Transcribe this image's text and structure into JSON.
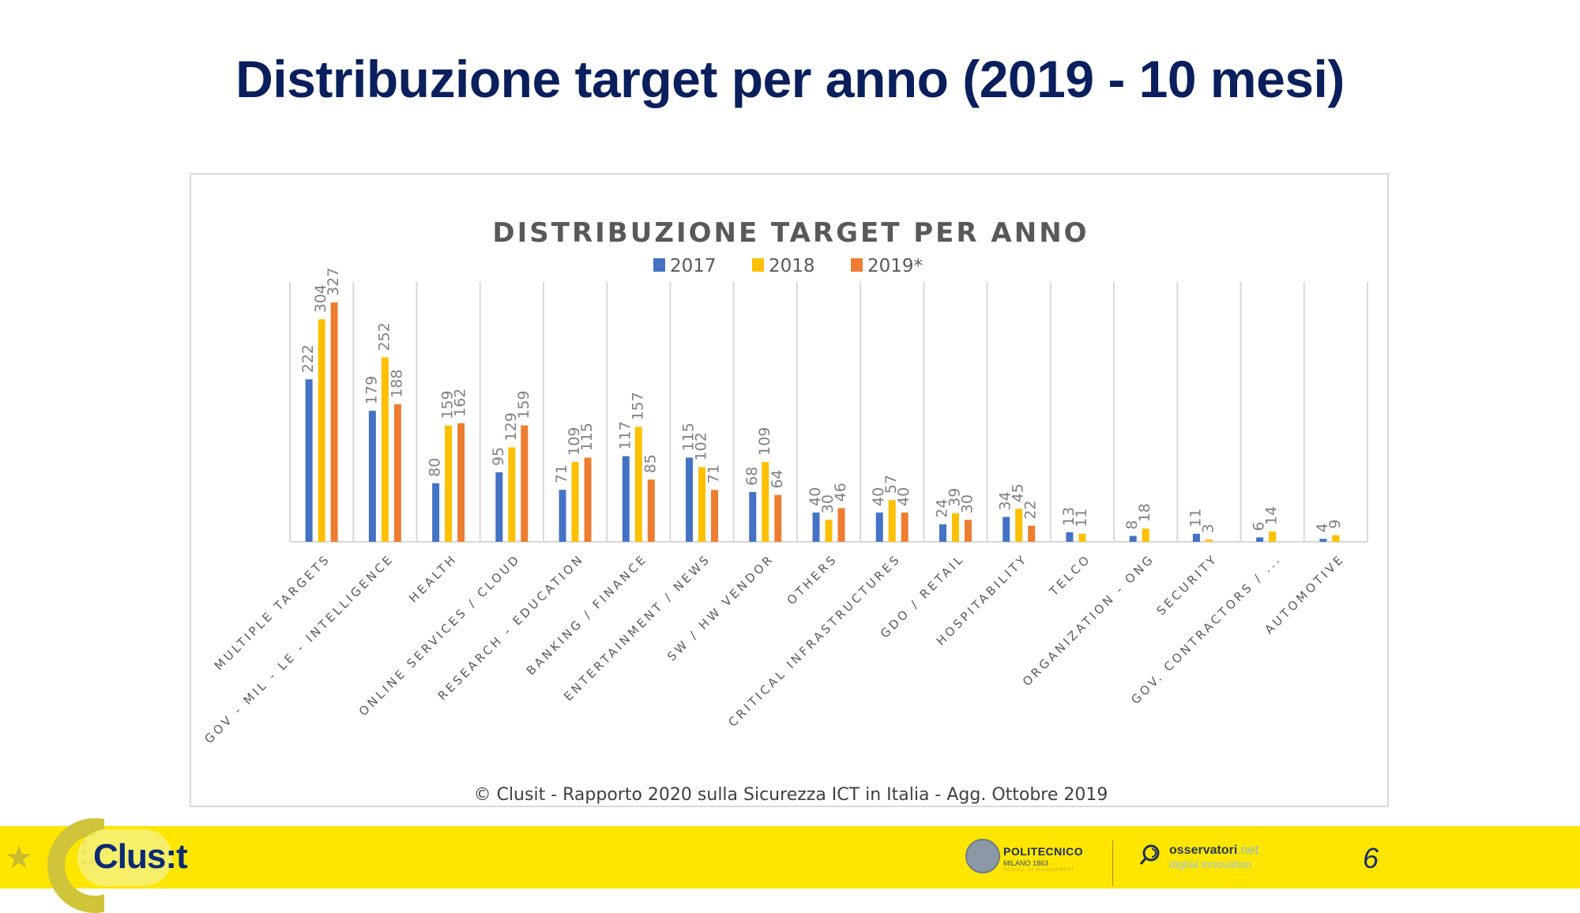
{
  "slide": {
    "title": "Distribuzione target per anno (2019 - 10 mesi)",
    "page_number": "6"
  },
  "footer": {
    "clusit_logo": "Clus:t",
    "politecnico_name": "POLITECNICO",
    "politecnico_sub": "MILANO 1863",
    "politecnico_sub2": "SCHOOL OF MANAGEMENT",
    "osservatori_name": "osservatori",
    "osservatori_net": ".net",
    "osservatori_sub": "digital innovation"
  },
  "colors": {
    "2017": "#4472C4",
    "2018": "#FFC000",
    "2019": "#ED7D31",
    "title": "#0a1f5c",
    "footer_band": "#ffe600"
  },
  "chart_data": {
    "type": "bar",
    "title": "DISTRIBUZIONE TARGET PER ANNO",
    "source": "© Clusit - Rapporto 2020 sulla Sicurezza ICT in Italia - Agg. Ottobre 2019",
    "xlabel": "",
    "ylabel": "",
    "ylim": [
      0,
      355
    ],
    "grid": "vertical category separators",
    "legend": "top-center",
    "categories": [
      "MULTIPLE TARGETS",
      "GOV - MIL - LE - INTELLIGENCE",
      "HEALTH",
      "ONLINE SERVICES / CLOUD",
      "RESEARCH - EDUCATION",
      "BANKING / FINANCE",
      "ENTERTAINMENT / NEWS",
      "SW / HW VENDOR",
      "OTHERS",
      "CRITICAL INFRASTRUCTURES",
      "GDO / RETAIL",
      "HOSPITABILITY",
      "TELCO",
      "ORGANIZATION - ONG",
      "SECURITY",
      "GOV. CONTRACTORS / ...",
      "AUTOMOTIVE"
    ],
    "series": [
      {
        "name": "2017",
        "color": "#4472C4",
        "values": [
          222,
          179,
          80,
          95,
          71,
          117,
          115,
          68,
          40,
          40,
          24,
          34,
          13,
          8,
          11,
          6,
          4
        ]
      },
      {
        "name": "2018",
        "color": "#FFC000",
        "values": [
          304,
          252,
          159,
          129,
          109,
          157,
          102,
          109,
          30,
          57,
          39,
          45,
          11,
          18,
          3,
          14,
          9
        ]
      },
      {
        "name": "2019*",
        "color": "#ED7D31",
        "values": [
          327,
          188,
          162,
          159,
          115,
          85,
          71,
          64,
          46,
          40,
          30,
          22,
          null,
          null,
          null,
          null,
          null
        ]
      }
    ]
  }
}
